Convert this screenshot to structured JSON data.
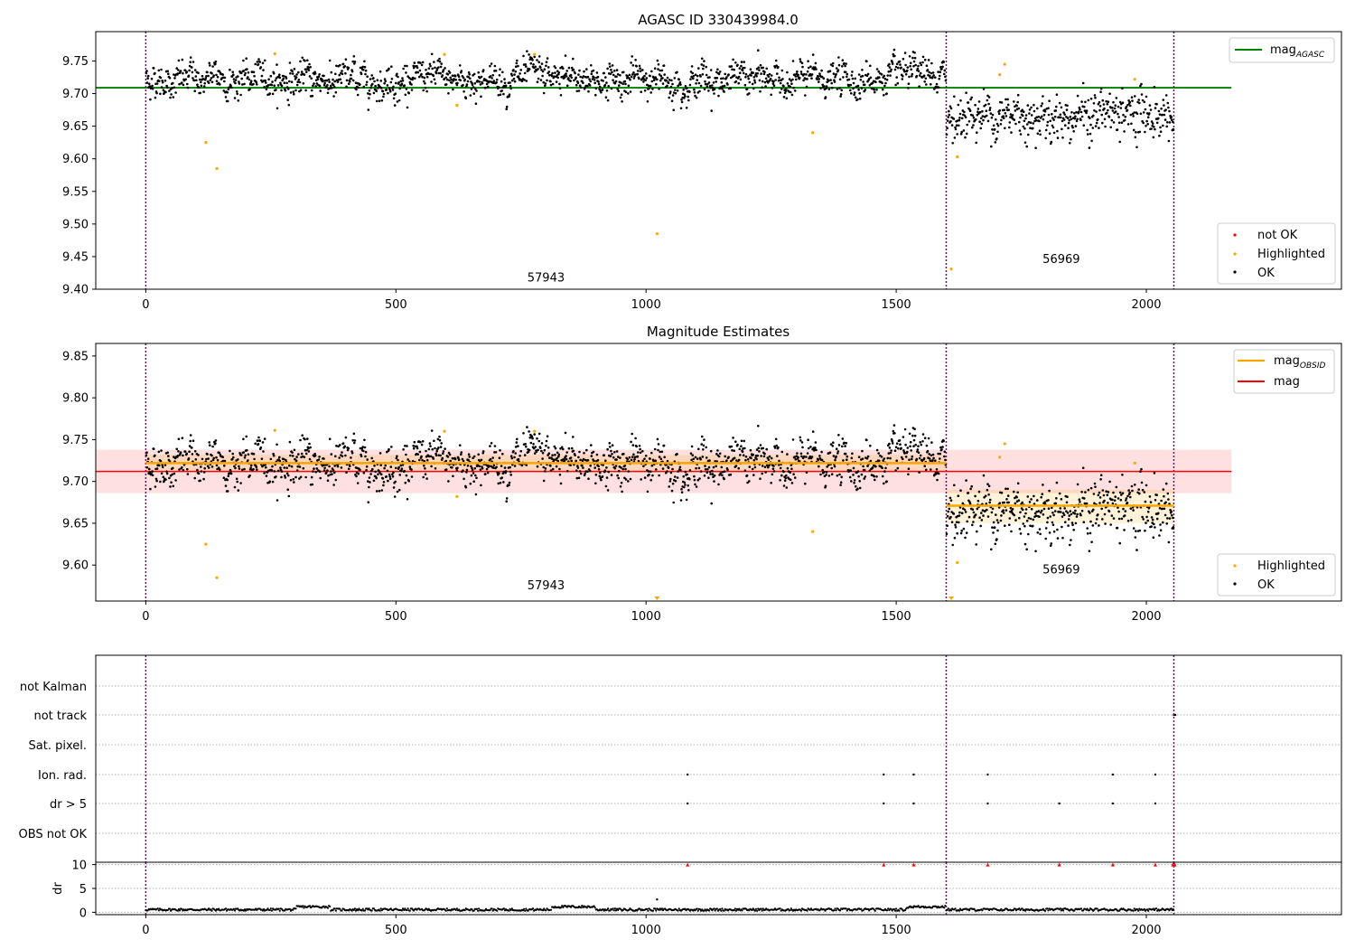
{
  "chart_data": [
    {
      "type": "scatter",
      "title": "AGASC ID 330439984.0",
      "xlim": [
        -100,
        2390
      ],
      "ylim": [
        9.4,
        9.795
      ],
      "xticks": [
        0,
        500,
        1000,
        1500,
        2000
      ],
      "yticks": [
        9.4,
        9.45,
        9.5,
        9.55,
        9.6,
        9.65,
        9.7,
        9.75
      ],
      "ytick_labels": [
        "9.40",
        "9.45",
        "9.50",
        "9.55",
        "9.60",
        "9.65",
        "9.70",
        "9.75"
      ],
      "obs_boundaries": [
        0,
        1600,
        2055
      ],
      "obs_labels": [
        {
          "text": "57943",
          "x": 800,
          "y": 9.412
        },
        {
          "text": "56969",
          "x": 1830,
          "y": 9.44
        }
      ],
      "agasc_mag": 9.709,
      "agasc_line_xrange": [
        -100,
        2170
      ],
      "segments": [
        {
          "x0": 0,
          "x1": 1600,
          "mean": 9.722,
          "sd": 0.011
        },
        {
          "x0": 1600,
          "x1": 2055,
          "mean": 9.668,
          "sd": 0.017
        }
      ],
      "highlighted": [
        {
          "x": 120,
          "y": 9.625
        },
        {
          "x": 142,
          "y": 9.585
        },
        {
          "x": 258,
          "y": 9.761
        },
        {
          "x": 597,
          "y": 9.76
        },
        {
          "x": 622,
          "y": 9.682
        },
        {
          "x": 777,
          "y": 9.76
        },
        {
          "x": 1022,
          "y": 9.485
        },
        {
          "x": 1333,
          "y": 9.64
        },
        {
          "x": 1610,
          "y": 9.431
        },
        {
          "x": 1622,
          "y": 9.603
        },
        {
          "x": 1707,
          "y": 9.729
        },
        {
          "x": 1717,
          "y": 9.745
        },
        {
          "x": 1977,
          "y": 9.722
        }
      ],
      "legend": {
        "position": "upper right",
        "entries": [
          "mag",
          "AGASC"
        ]
      },
      "legend2": {
        "position": "lower right",
        "entries": [
          "not OK",
          "Highlighted",
          "OK"
        ]
      },
      "colors": {
        "ok": "#000000",
        "not_ok": "#ff0000",
        "highlighted": "#ffa500",
        "agasc": "#008000",
        "boundary": "#800080"
      }
    },
    {
      "type": "scatter",
      "title": "Magnitude Estimates",
      "xlim": [
        -100,
        2390
      ],
      "ylim": [
        9.557,
        9.865
      ],
      "xticks": [
        0,
        500,
        1000,
        1500,
        2000
      ],
      "yticks": [
        9.6,
        9.65,
        9.7,
        9.75,
        9.8,
        9.85
      ],
      "ytick_labels": [
        "9.60",
        "9.65",
        "9.70",
        "9.75",
        "9.80",
        "9.85"
      ],
      "obs_labels": [
        {
          "text": "57943",
          "x": 800,
          "y": 9.571
        },
        {
          "text": "56969",
          "x": 1830,
          "y": 9.59
        }
      ],
      "mag": 9.712,
      "mag_band": [
        9.686,
        9.738
      ],
      "mag_line_xrange": [
        -100,
        2170
      ],
      "obsid_segments": [
        {
          "x0": 0,
          "x1": 1600,
          "mag": 9.722,
          "band": [
            9.712,
            9.732
          ]
        },
        {
          "x0": 1600,
          "x1": 2055,
          "mag": 9.671,
          "band": [
            9.65,
            9.69
          ]
        }
      ],
      "out_of_range_markers": [
        {
          "x": 1022
        },
        {
          "x": 1610
        }
      ],
      "legend": {
        "position": "upper right",
        "entries": [
          "mag",
          "OBSID",
          "mag"
        ]
      },
      "legend2": {
        "position": "lower right",
        "entries": [
          "Highlighted",
          "OK"
        ]
      },
      "colors": {
        "obsid": "#ffa500",
        "mag": "#ff0000",
        "band": "#ffcccc",
        "obsid_band": "#ffe6c0"
      }
    },
    {
      "type": "scatter",
      "title": "",
      "categories": [
        "not Kalman",
        "not track",
        "Sat. pixel.",
        "Ion. rad.",
        "dr > 5",
        "OBS not OK"
      ],
      "flags": {
        "not track": [
          2055,
          2058
        ],
        "Ion. rad.": [
          1083,
          1475,
          1535,
          1683,
          1933,
          2018
        ],
        "dr > 5": [
          1083,
          1475,
          1535,
          1683,
          1826,
          1933,
          2018
        ]
      }
    },
    {
      "type": "scatter",
      "ylabel": "dr",
      "xlim": [
        -100,
        2390
      ],
      "ylim": [
        -0.5,
        10.5
      ],
      "xticks": [
        0,
        500,
        1000,
        1500,
        2000
      ],
      "yticks": [
        0,
        5,
        10
      ],
      "ytick_labels": [
        "0",
        "5",
        "10"
      ],
      "clipped_points": [
        1083,
        1475,
        1535,
        1683,
        1826,
        1933,
        2018,
        2053,
        2057
      ],
      "outliers": [
        {
          "x": 1022,
          "y": 2.7
        }
      ]
    }
  ],
  "axis": {
    "xtick_labels": [
      "0",
      "500",
      "1000",
      "1500",
      "2000"
    ]
  },
  "legend_text": {
    "mag_agasc_main": "mag",
    "mag_agasc_sub": "AGASC",
    "mag_obsid_main": "mag",
    "mag_obsid_sub": "OBSID",
    "mag": "mag",
    "not_ok": "not OK",
    "highlighted": "Highlighted",
    "ok": "OK"
  }
}
